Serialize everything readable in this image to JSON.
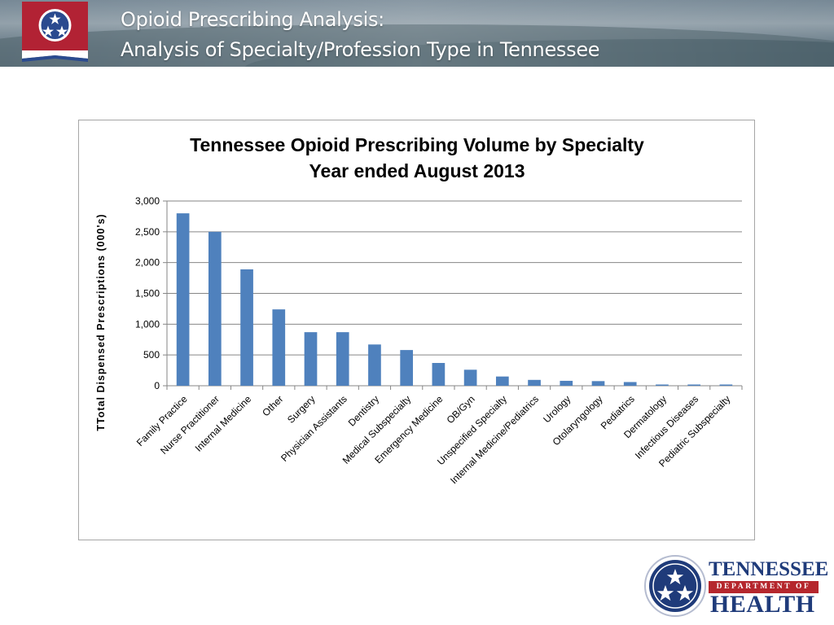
{
  "header": {
    "title_line1": "Opioid Prescribing Analysis:",
    "title_line2": "Analysis of Specialty/Profession Type in Tennessee"
  },
  "colors": {
    "bar": "#4f81bd",
    "gridline": "#868686",
    "header_text": "#ffffff",
    "logo_blue": "#1f3b7a",
    "logo_red": "#b5272d",
    "flag_red": "#b22234"
  },
  "chart_data": {
    "type": "bar",
    "title": "Tennessee Opioid Prescribing Volume by Specialty",
    "subtitle": "Year ended August 2013",
    "xlabel": "",
    "ylabel": "TTotal Dispensed Prescriptions (000's)",
    "ylim": [
      0,
      3000
    ],
    "yticks": [
      0,
      500,
      1000,
      1500,
      2000,
      2500,
      3000
    ],
    "ytick_labels": [
      "0",
      "500",
      "1,000",
      "1,500",
      "2,000",
      "2,500",
      "3,000"
    ],
    "grid": true,
    "legend": "none",
    "categories": [
      "Family Practice",
      "Nurse Practitioner",
      "Internal Medicine",
      "Other",
      "Surgery",
      "Physician Assistants",
      "Dentistry",
      "Medical Subspecialty",
      "Emergency Medicine",
      "OB/Gyn",
      "Unspecified Specialty",
      "Internal Medicine/Pediatrics",
      "Urology",
      "Otolaryngology",
      "Pediatrics",
      "Dermatology",
      "Infectious Diseases",
      "Pediatric Subspecialty"
    ],
    "values": [
      2800,
      2500,
      1890,
      1240,
      870,
      870,
      670,
      580,
      370,
      260,
      150,
      95,
      80,
      75,
      60,
      20,
      20,
      20
    ]
  },
  "logo": {
    "line1": "TENNESSEE",
    "line2": "DEPARTMENT OF",
    "line3": "HEALTH"
  }
}
